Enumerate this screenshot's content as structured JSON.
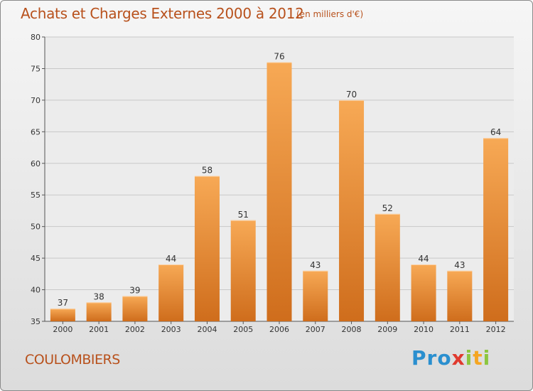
{
  "title": "Achats et Charges Externes 2000 à 2012",
  "subtitle": "(en milliers d'€)",
  "city": "COULOMBIERS",
  "logo": {
    "letters": [
      "P",
      "r",
      "o",
      "x",
      "i",
      "t",
      "i"
    ],
    "colors": [
      "#2a8fcf",
      "#2a8fcf",
      "#2a8fcf",
      "#e03a2e",
      "#8cc63f",
      "#f5a623",
      "#8cc63f"
    ]
  },
  "colors": {
    "bar_top": "#f7a955",
    "bar_bottom": "#cf6d1c",
    "text": "#b8511c"
  },
  "chart_data": {
    "type": "bar",
    "title": "Achats et Charges Externes 2000 à 2012",
    "subtitle": "(en milliers d'€)",
    "categories": [
      "2000",
      "2001",
      "2002",
      "2003",
      "2004",
      "2005",
      "2006",
      "2007",
      "2008",
      "2009",
      "2010",
      "2011",
      "2012"
    ],
    "values": [
      37,
      38,
      39,
      44,
      58,
      51,
      76,
      43,
      70,
      52,
      44,
      43,
      64
    ],
    "ylim": [
      35,
      80
    ],
    "yticks": [
      35,
      40,
      45,
      50,
      55,
      60,
      65,
      70,
      75,
      80
    ],
    "grid": true
  }
}
